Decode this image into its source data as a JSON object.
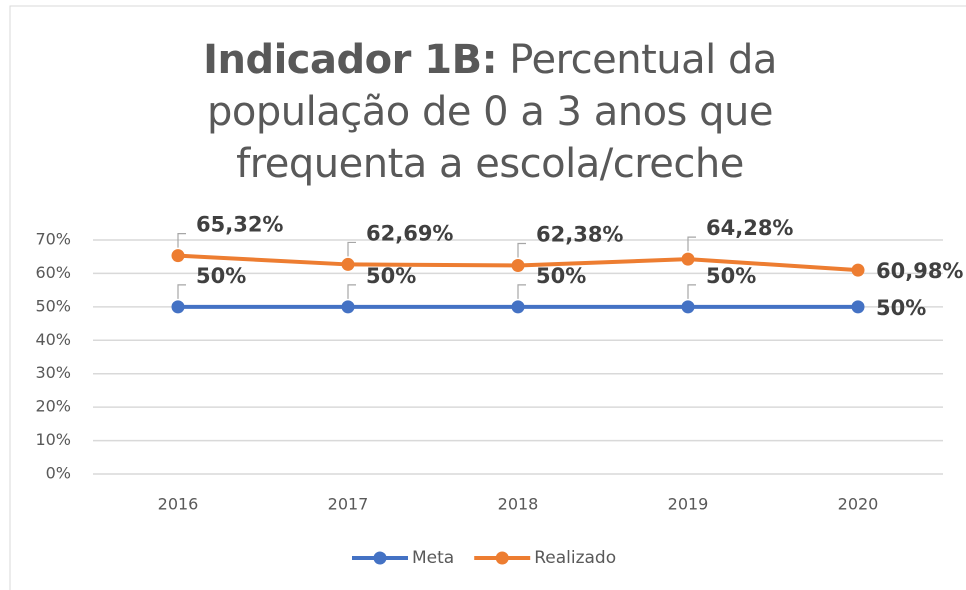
{
  "chart_data": {
    "type": "line",
    "title_prefix": "Indicador 1B:",
    "title": "Percentual da população de 0 a 3 anos que frequenta a escola/creche",
    "categories": [
      "2016",
      "2017",
      "2018",
      "2019",
      "2020"
    ],
    "series": [
      {
        "name": "Meta",
        "color": "#4472c4",
        "values": [
          50,
          50,
          50,
          50,
          50
        ],
        "value_labels": [
          "50%",
          "50%",
          "50%",
          "50%",
          "50%"
        ]
      },
      {
        "name": "Realizado",
        "color": "#ed7d31",
        "values": [
          65.32,
          62.69,
          62.38,
          64.28,
          60.98
        ],
        "value_labels": [
          "65,32%",
          "62,69%",
          "62,38%",
          "64,28%",
          "60,98%"
        ]
      }
    ],
    "ylim": [
      0,
      70
    ],
    "yticks": [
      {
        "value": 0,
        "label": "0%"
      },
      {
        "value": 10,
        "label": "10%"
      },
      {
        "value": 20,
        "label": "20%"
      },
      {
        "value": 30,
        "label": "30%"
      },
      {
        "value": 40,
        "label": "40%"
      },
      {
        "value": 50,
        "label": "50%"
      },
      {
        "value": 60,
        "label": "60%"
      },
      {
        "value": 70,
        "label": "70%"
      }
    ],
    "grid": true,
    "legend": "bottom"
  }
}
